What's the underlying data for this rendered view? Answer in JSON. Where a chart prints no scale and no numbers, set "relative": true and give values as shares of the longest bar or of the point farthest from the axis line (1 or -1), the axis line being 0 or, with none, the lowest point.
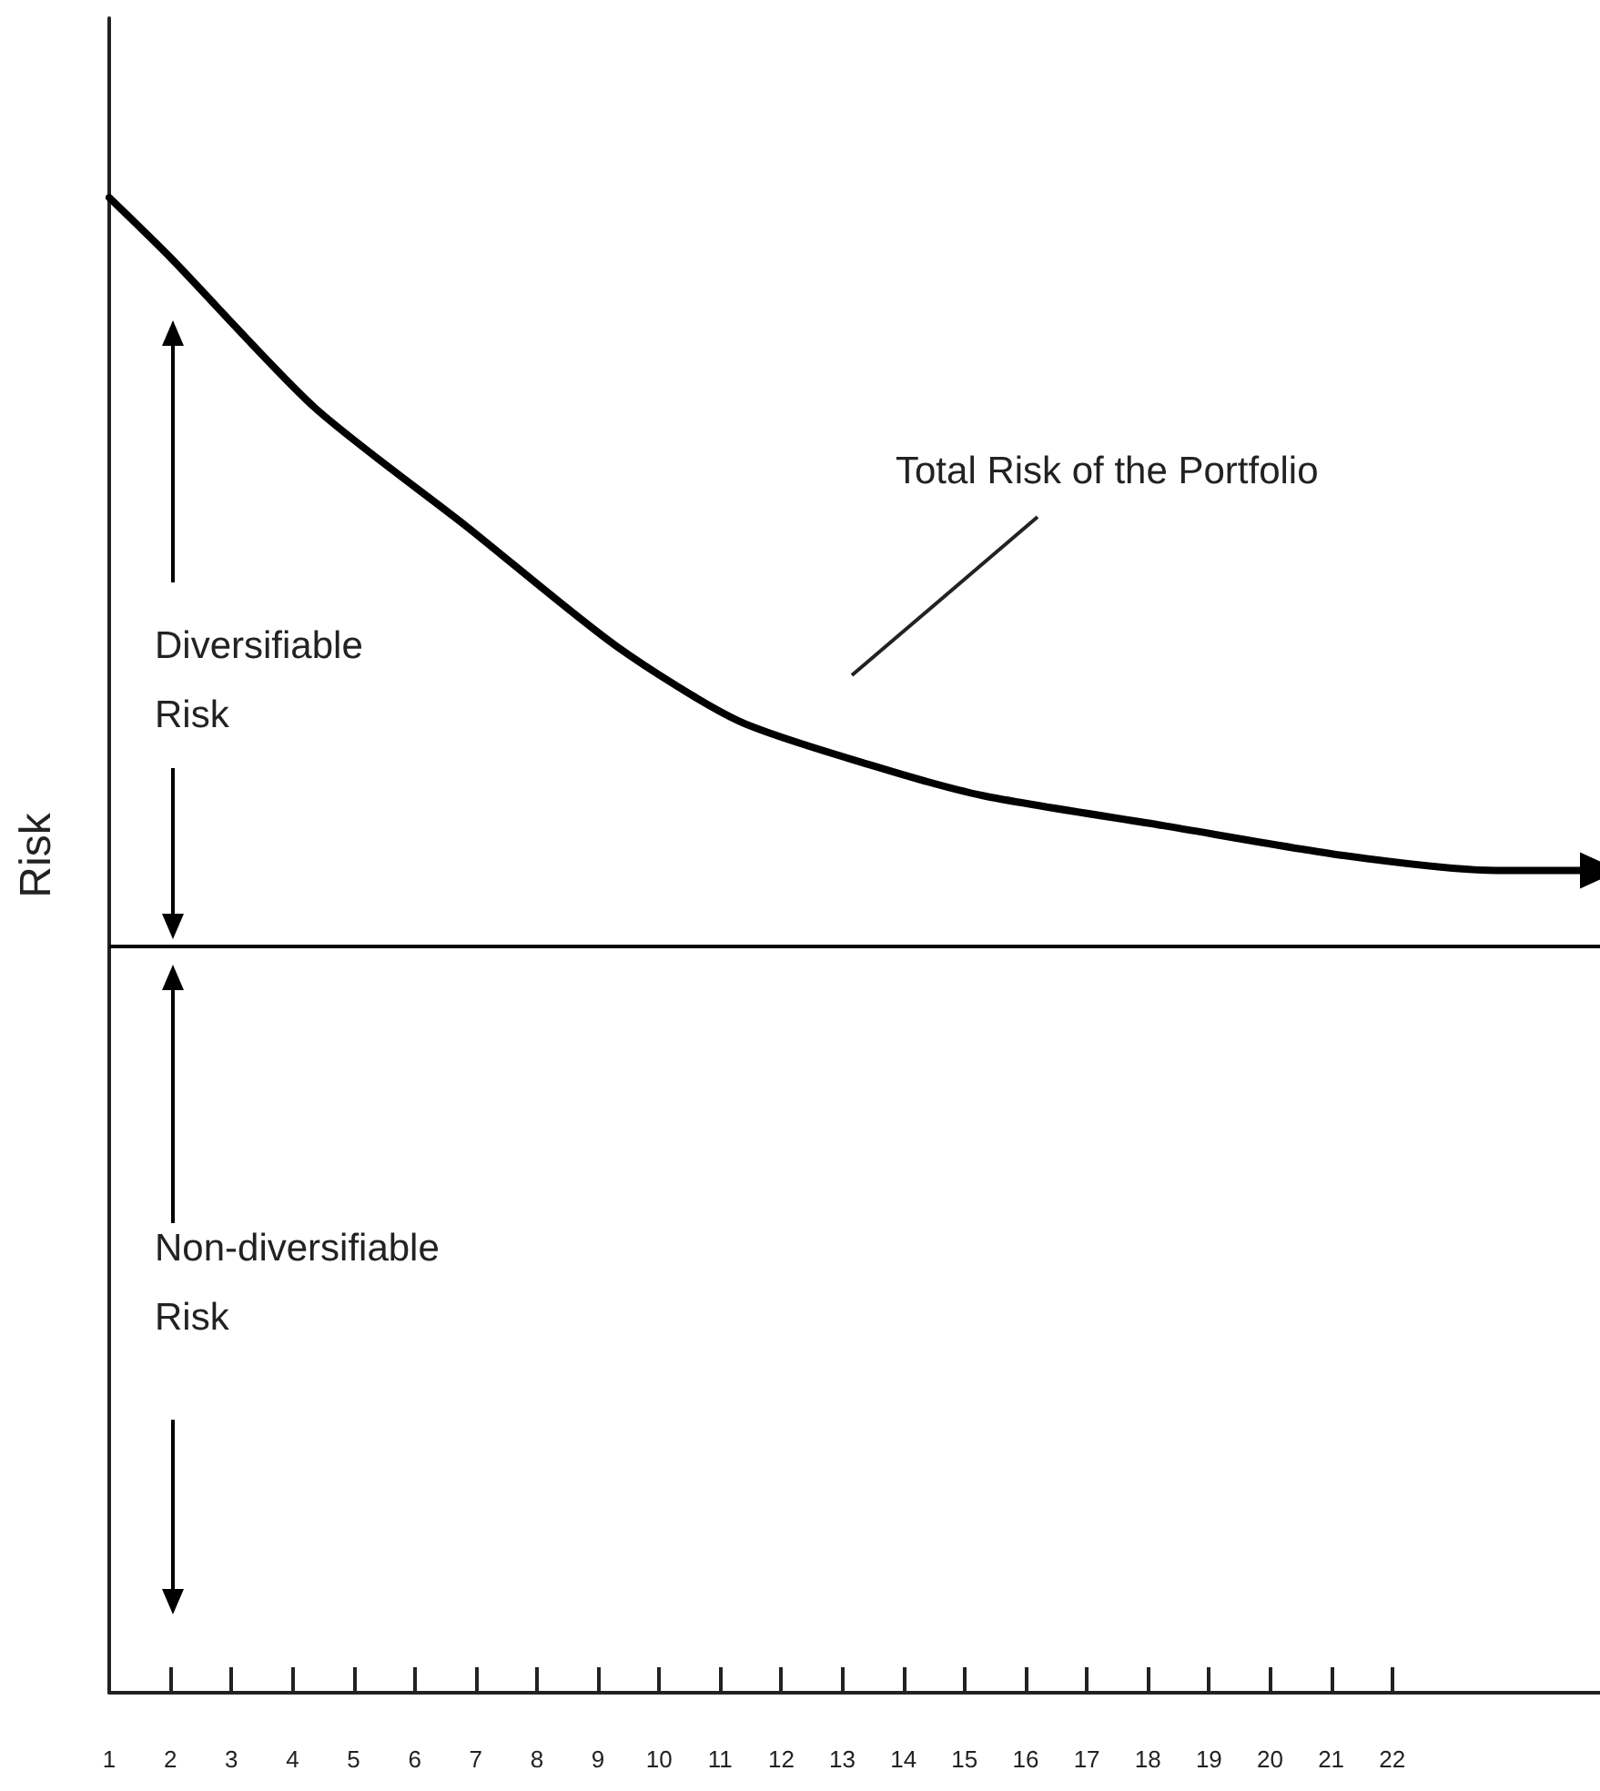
{
  "chart_data": {
    "type": "line",
    "ylabel": "Risk",
    "relative": true,
    "x": [
      1,
      2,
      4.35,
      6.85,
      9.3,
      11.3,
      13.5,
      15.3,
      18.25,
      21.2,
      23.7,
      25.4
    ],
    "series": [
      {
        "color": "#000000",
        "values": [
          1.0,
          0.96,
          0.86,
          0.78,
          0.7,
          0.65,
          0.62,
          0.6,
          0.58,
          0.56,
          0.55,
          0.55
        ]
      }
    ],
    "xlim": [
      1,
      25.4
    ],
    "xticks": [
      1,
      2,
      3,
      4,
      5,
      6,
      7,
      8,
      9,
      10,
      11,
      12,
      13,
      14,
      15,
      16,
      17,
      18,
      19,
      20,
      21,
      22
    ],
    "ref_lines": [
      {
        "axis": "y",
        "value": 0.5,
        "color": "#000000"
      }
    ],
    "annotations": [
      "Total Risk of the Portfolio",
      "Diversifiable\nRisk",
      "Non-diversifiable\nRisk"
    ],
    "grid": false,
    "marker": "none",
    "line_style": "solid"
  }
}
